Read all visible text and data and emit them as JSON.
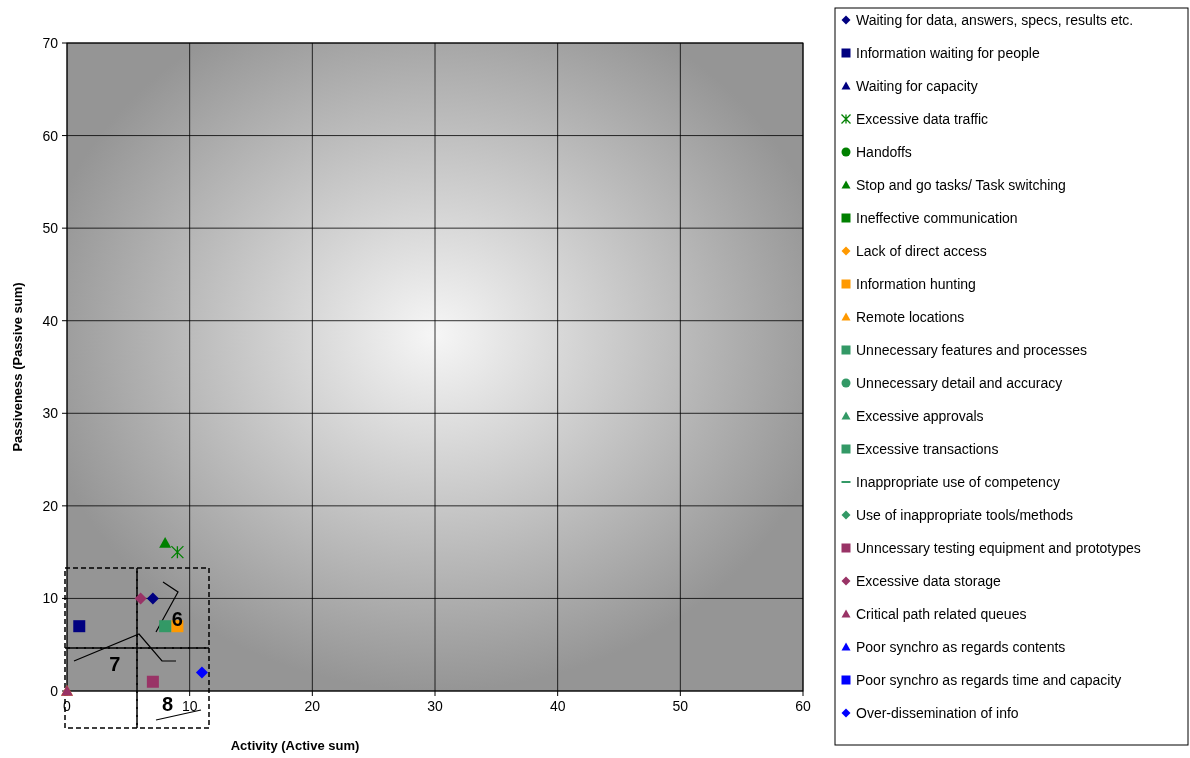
{
  "chart_data": {
    "type": "scatter",
    "xlabel": "Activity (Active sum)",
    "ylabel": "Passiveness (Passive sum)",
    "xlim": [
      0,
      60
    ],
    "ylim": [
      0,
      70
    ],
    "xticks": [
      0,
      10,
      20,
      30,
      40,
      50,
      60
    ],
    "yticks": [
      0,
      10,
      20,
      30,
      40,
      50,
      60,
      70
    ],
    "grid": true,
    "legend": "right",
    "annotations": [
      "6",
      "7",
      "8"
    ],
    "series": [
      {
        "name": "Waiting for data, answers, specs, results etc.",
        "color": "#000080",
        "marker": "diamond",
        "x": [
          7
        ],
        "values": [
          10
        ]
      },
      {
        "name": "Information waiting for people",
        "color": "#000080",
        "marker": "square",
        "x": [
          1
        ],
        "values": [
          7
        ]
      },
      {
        "name": "Waiting for capacity",
        "color": "#000080",
        "marker": "triangle",
        "x": [
          null
        ],
        "values": [
          null
        ]
      },
      {
        "name": "Excessive data traffic",
        "color": "#008000",
        "marker": "cross",
        "x": [
          9
        ],
        "values": [
          15
        ]
      },
      {
        "name": "Handoffs",
        "color": "#008000",
        "marker": "circle",
        "x": [
          null
        ],
        "values": [
          null
        ]
      },
      {
        "name": "Stop and go tasks/ Task switching",
        "color": "#008000",
        "marker": "triangle",
        "x": [
          8
        ],
        "values": [
          16
        ]
      },
      {
        "name": "Ineffective communication",
        "color": "#008000",
        "marker": "square",
        "x": [
          null
        ],
        "values": [
          null
        ]
      },
      {
        "name": "Lack of direct access",
        "color": "#ff9900",
        "marker": "diamond",
        "x": [
          null
        ],
        "values": [
          null
        ]
      },
      {
        "name": "Information hunting",
        "color": "#ff9900",
        "marker": "square",
        "x": [
          9
        ],
        "values": [
          7
        ]
      },
      {
        "name": "Remote locations",
        "color": "#ff9900",
        "marker": "triangle",
        "x": [
          0
        ],
        "values": [
          0
        ]
      },
      {
        "name": "Unnecessary features and processes",
        "color": "#339966",
        "marker": "square",
        "x": [
          8
        ],
        "values": [
          7
        ]
      },
      {
        "name": "Unnecessary detail and accuracy",
        "color": "#339966",
        "marker": "circle",
        "x": [
          null
        ],
        "values": [
          null
        ]
      },
      {
        "name": "Excessive approvals",
        "color": "#339966",
        "marker": "triangle",
        "x": [
          null
        ],
        "values": [
          null
        ]
      },
      {
        "name": "Excessive transactions",
        "color": "#339966",
        "marker": "square",
        "x": [
          null
        ],
        "values": [
          null
        ]
      },
      {
        "name": "Inappropriate use of competency",
        "color": "#339966",
        "marker": "none",
        "x": [
          null
        ],
        "values": [
          null
        ]
      },
      {
        "name": "Use of inappropriate tools/methods",
        "color": "#339966",
        "marker": "diamond",
        "x": [
          null
        ],
        "values": [
          null
        ]
      },
      {
        "name": "Unncessary testing equipment and prototypes",
        "color": "#993366",
        "marker": "square",
        "x": [
          7
        ],
        "values": [
          1
        ]
      },
      {
        "name": "Excessive data storage",
        "color": "#993366",
        "marker": "diamond",
        "x": [
          6
        ],
        "values": [
          10
        ]
      },
      {
        "name": "Critical path related queues",
        "color": "#993366",
        "marker": "triangle",
        "x": [
          0
        ],
        "values": [
          0
        ]
      },
      {
        "name": "Poor synchro as regards contents",
        "color": "#0000ff",
        "marker": "triangle",
        "x": [
          null
        ],
        "values": [
          null
        ]
      },
      {
        "name": "Poor synchro as regards time and capacity",
        "color": "#0000ff",
        "marker": "square",
        "x": [
          null
        ],
        "values": [
          null
        ]
      },
      {
        "name": "Over-dissemination of info",
        "color": "#0000ff",
        "marker": "diamond",
        "x": [
          11
        ],
        "values": [
          2
        ]
      }
    ]
  }
}
